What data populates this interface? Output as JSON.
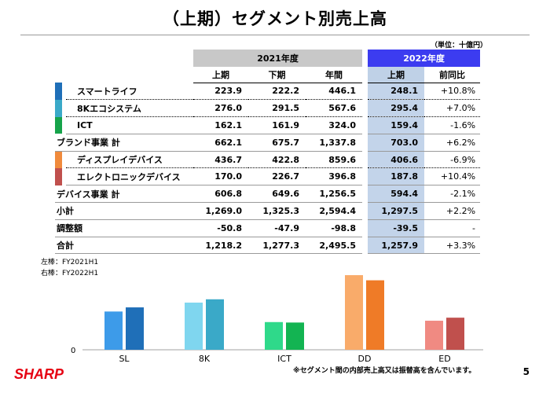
{
  "title": "（上期）セグメント別売上高",
  "unit": "（単位：十億円）",
  "table": {
    "year_2021": "2021年度",
    "year_2022": "2022年度",
    "col_headers": [
      "上期",
      "下期",
      "年間",
      "上期",
      "前同比"
    ],
    "rows": [
      {
        "label": "スマートライフ",
        "color": "#1f6fb8",
        "v": [
          "223.9",
          "222.2",
          "446.1",
          "248.1",
          "+10.8%"
        ]
      },
      {
        "label": "8Kエコシステム",
        "color": "#3aa9c8",
        "v": [
          "276.0",
          "291.5",
          "567.6",
          "295.4",
          "+7.0%"
        ]
      },
      {
        "label": "ICT",
        "color": "#16a34a",
        "v": [
          "162.1",
          "161.9",
          "324.0",
          "159.4",
          "-1.6%"
        ]
      },
      {
        "label": "ブランド事業 計",
        "v": [
          "662.1",
          "675.7",
          "1,337.8",
          "703.0",
          "+6.2%"
        ]
      },
      {
        "label": "ディスプレイデバイス",
        "color": "#f08a3c",
        "v": [
          "436.7",
          "422.8",
          "859.6",
          "406.6",
          "-6.9%"
        ]
      },
      {
        "label": "エレクトロニックデバイス",
        "color": "#c0504d",
        "v": [
          "170.0",
          "226.7",
          "396.8",
          "187.8",
          "+10.4%"
        ]
      },
      {
        "label": "デバイス事業 計",
        "v": [
          "606.8",
          "649.6",
          "1,256.5",
          "594.4",
          "-2.1%"
        ]
      },
      {
        "label": "小計",
        "v": [
          "1,269.0",
          "1,325.3",
          "2,594.4",
          "1,297.5",
          "+2.2%"
        ]
      },
      {
        "label": "調整額",
        "v": [
          "-50.8",
          "-47.9",
          "-98.8",
          "-39.5",
          "-"
        ]
      },
      {
        "label": "合計",
        "v": [
          "1,218.2",
          "1,277.3",
          "2,495.5",
          "1,257.9",
          "+3.3%"
        ]
      }
    ]
  },
  "legend": {
    "left": "左棒：FY2021H1",
    "right": "右棒：FY2022H1"
  },
  "chart_data": {
    "type": "bar",
    "categories": [
      "SL",
      "8K",
      "ICT",
      "DD",
      "ED"
    ],
    "series": [
      {
        "name": "FY2021H1",
        "values": [
          223.9,
          276.0,
          162.1,
          436.7,
          170.0
        ],
        "colors": [
          "#3d9be9",
          "#7fd6ef",
          "#2fd98a",
          "#f9ab6a",
          "#f08a82"
        ]
      },
      {
        "name": "FY2022H1",
        "values": [
          248.1,
          295.4,
          159.4,
          406.6,
          187.8
        ],
        "colors": [
          "#1f6fb8",
          "#3aa9c8",
          "#13b452",
          "#ef7b27",
          "#c0504d"
        ]
      }
    ],
    "zero_label": "0",
    "ylim": [
      0,
      460
    ]
  },
  "footnote": "※セグメント間の内部売上高又は振替高を含んでいます。",
  "logo": "SHARP",
  "page_number": "5"
}
